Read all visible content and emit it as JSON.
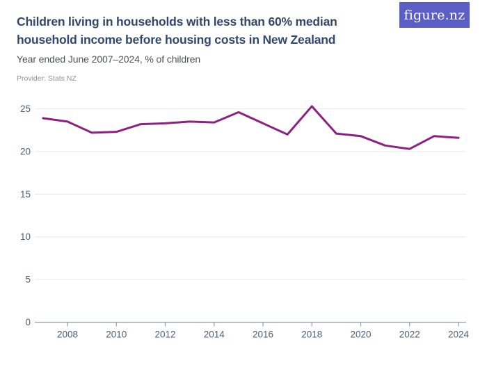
{
  "colors": {
    "brand_indigo": "#5b5fc5",
    "logo_text": "#ffffff",
    "title": "#33486e",
    "subtitle": "#4f5257",
    "provider": "#8e9196",
    "grid": "#e9e9e9",
    "axis": "#98a2b3",
    "tick_label": "#4d6078",
    "line": "#8e2082",
    "background": "#ffffff"
  },
  "logo": {
    "text": "figure.nz"
  },
  "header": {
    "title_lines": [
      "Children living in households with less than 60% median",
      "household income before housing costs in New Zealand"
    ],
    "subtitle": "Year ended June 2007–2024, % of children",
    "provider": "Provider: Stats NZ"
  },
  "chart_data": {
    "type": "line",
    "title": "Children living in households with less than 60% median household income before housing costs in New Zealand",
    "subtitle": "Year ended June 2007–2024, % of children",
    "source": "Provider: Stats NZ",
    "x": [
      2007,
      2008,
      2009,
      2010,
      2011,
      2012,
      2013,
      2014,
      2015,
      2016,
      2017,
      2018,
      2019,
      2020,
      2021,
      2022,
      2023,
      2024
    ],
    "series": [
      {
        "name": "% of children",
        "values": [
          23.9,
          23.5,
          22.2,
          22.3,
          23.2,
          23.3,
          23.5,
          23.4,
          24.6,
          23.3,
          22.0,
          25.3,
          22.1,
          21.8,
          20.7,
          20.3,
          21.8,
          21.6
        ]
      }
    ],
    "xlabel": "",
    "ylabel": "",
    "unit": "% of children",
    "ylim": [
      0,
      25.8
    ],
    "yticks": [
      0,
      5,
      10,
      15,
      20,
      25
    ],
    "xticks": [
      2008,
      2010,
      2012,
      2014,
      2016,
      2018,
      2020,
      2022,
      2024
    ],
    "grid": true,
    "legend_position": "none",
    "line_color": "#8e2082"
  }
}
